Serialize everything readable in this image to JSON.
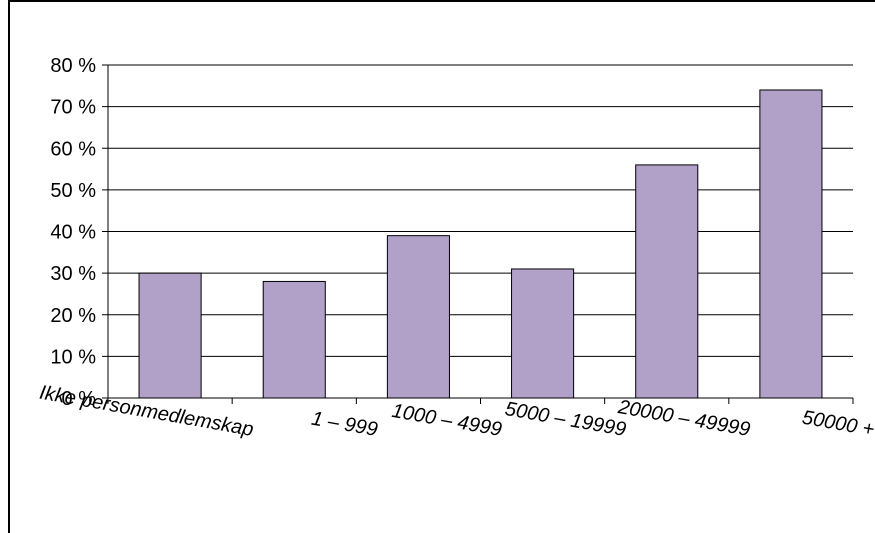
{
  "chart_data": {
    "type": "bar",
    "title": "",
    "xlabel": "",
    "ylabel": "",
    "categories": [
      "Ikke personmedlemskap",
      "1 – 999",
      "1000 – 4999",
      "5000 – 19999",
      "20000 – 49999",
      "50000 +"
    ],
    "values": [
      30,
      28,
      39,
      31,
      56,
      74
    ],
    "unit": "%",
    "ylim": [
      0,
      80
    ],
    "yticks": [
      0,
      10,
      20,
      30,
      40,
      50,
      60,
      70,
      80
    ],
    "ytick_labels": [
      "0 %",
      "10 %",
      "20 %",
      "30 %",
      "40 %",
      "50 %",
      "60 %",
      "70 %",
      "80 %"
    ],
    "grid": true,
    "legend": "none",
    "bar_color": "#b1a0c7"
  }
}
